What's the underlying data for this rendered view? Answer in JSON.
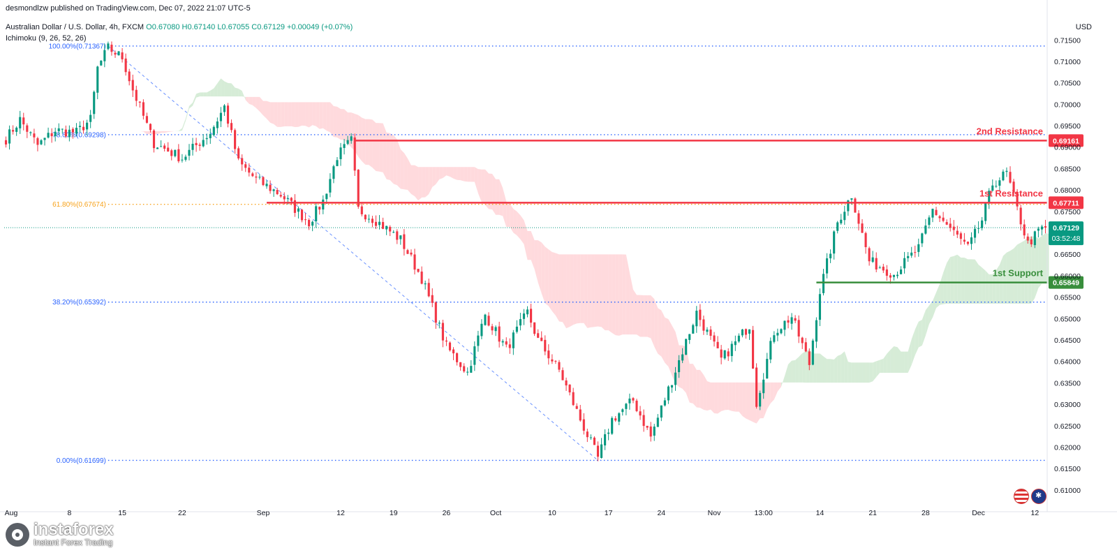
{
  "header": {
    "publisher": "desmondlzw published on TradingView.com, Dec 07, 2022 21:07 UTC-5",
    "symbol": "Australian Dollar / U.S. Dollar, 4h, FXCM",
    "ohlc": {
      "o": "O0.67080",
      "h": "H0.67140",
      "l": "L0.67055",
      "c": "C0.67129",
      "chg": "+0.00049 (+0.07%)"
    },
    "indicator": "Ichimoku (9, 26, 52, 26)",
    "currency": "USD"
  },
  "branding": {
    "name": "instaforex",
    "tagline": "Instant Forex Trading"
  },
  "chart_data": {
    "type": "candlestick",
    "instrument": "AUDUSD 4h",
    "ylim": [
      0.6055,
      0.7205
    ],
    "y_ticks": [
      "0.71500",
      "0.71000",
      "0.70500",
      "0.70000",
      "0.69500",
      "0.69000",
      "0.68500",
      "0.68000",
      "0.67500",
      "0.67000",
      "0.66500",
      "0.66000",
      "0.65500",
      "0.65000",
      "0.64500",
      "0.64000",
      "0.63500",
      "0.63000",
      "0.62500",
      "0.62000",
      "0.61500",
      "0.61000"
    ],
    "x_ticks": [
      {
        "label": "Aug",
        "idx": 0
      },
      {
        "label": "8",
        "idx": 18
      },
      {
        "label": "15",
        "idx": 33
      },
      {
        "label": "22",
        "idx": 50
      },
      {
        "label": "Sep",
        "idx": 73
      },
      {
        "label": "12",
        "idx": 95
      },
      {
        "label": "19",
        "idx": 110
      },
      {
        "label": "26",
        "idx": 125
      },
      {
        "label": "Oct",
        "idx": 139
      },
      {
        "label": "10",
        "idx": 155
      },
      {
        "label": "17",
        "idx": 171
      },
      {
        "label": "24",
        "idx": 186
      },
      {
        "label": "Nov",
        "idx": 201
      },
      {
        "label": "13:00",
        "idx": 215
      },
      {
        "label": "14",
        "idx": 231
      },
      {
        "label": "21",
        "idx": 246
      },
      {
        "label": "28",
        "idx": 261
      },
      {
        "label": "Dec",
        "idx": 276
      },
      {
        "label": "12",
        "idx": 292
      }
    ],
    "price_path": [
      [
        0,
        0.692
      ],
      [
        4,
        0.6965
      ],
      [
        9,
        0.6905
      ],
      [
        14,
        0.694
      ],
      [
        20,
        0.6935
      ],
      [
        24,
        0.6965
      ],
      [
        26,
        0.7085
      ],
      [
        29,
        0.7132
      ],
      [
        33,
        0.711
      ],
      [
        36,
        0.7035
      ],
      [
        42,
        0.691
      ],
      [
        50,
        0.6875
      ],
      [
        58,
        0.6935
      ],
      [
        62,
        0.6995
      ],
      [
        66,
        0.6865
      ],
      [
        71,
        0.6825
      ],
      [
        78,
        0.679
      ],
      [
        86,
        0.6725
      ],
      [
        90,
        0.6775
      ],
      [
        94,
        0.688
      ],
      [
        98,
        0.6916
      ],
      [
        100,
        0.6755
      ],
      [
        105,
        0.673
      ],
      [
        112,
        0.6685
      ],
      [
        118,
        0.6595
      ],
      [
        125,
        0.6435
      ],
      [
        131,
        0.6375
      ],
      [
        136,
        0.651
      ],
      [
        142,
        0.643
      ],
      [
        148,
        0.6515
      ],
      [
        151,
        0.645
      ],
      [
        157,
        0.638
      ],
      [
        163,
        0.6265
      ],
      [
        168,
        0.6175
      ],
      [
        172,
        0.6265
      ],
      [
        178,
        0.631
      ],
      [
        183,
        0.6225
      ],
      [
        190,
        0.638
      ],
      [
        196,
        0.6515
      ],
      [
        203,
        0.6405
      ],
      [
        211,
        0.6485
      ],
      [
        213,
        0.6305
      ],
      [
        218,
        0.647
      ],
      [
        223,
        0.6505
      ],
      [
        228,
        0.6395
      ],
      [
        231,
        0.6565
      ],
      [
        236,
        0.6725
      ],
      [
        240,
        0.679
      ],
      [
        245,
        0.6635
      ],
      [
        252,
        0.6605
      ],
      [
        259,
        0.6665
      ],
      [
        263,
        0.6755
      ],
      [
        267,
        0.672
      ],
      [
        273,
        0.6665
      ],
      [
        277,
        0.673
      ],
      [
        280,
        0.6815
      ],
      [
        284,
        0.684
      ],
      [
        287,
        0.6755
      ],
      [
        290,
        0.6675
      ],
      [
        294,
        0.6712
      ]
    ],
    "last_price": "0.67129",
    "countdown": "03:52:48",
    "fibonacci": [
      {
        "level": "100.00%",
        "price": 0.71367,
        "label": "100.00%(0.71367)"
      },
      {
        "level": "78.60%",
        "price": 0.69298,
        "label": "78.60%(0.69298)"
      },
      {
        "level": "61.80%",
        "price": 0.67674,
        "label": "61.80%(0.67674)"
      },
      {
        "level": "38.20%",
        "price": 0.65392,
        "label": "38.20%(0.65392)"
      },
      {
        "level": "0.00%",
        "price": 0.61699,
        "label": "0.00%(0.61699)"
      }
    ],
    "levels": [
      {
        "name": "2nd Resistance",
        "price": 0.69161,
        "label": "0.69161",
        "color": "#f23645",
        "start_idx": 99
      },
      {
        "name": "1st Resistance",
        "price": 0.67711,
        "label": "0.67711",
        "color": "#f23645",
        "start_idx": 74
      },
      {
        "name": "1st Support",
        "price": 0.65849,
        "label": "0.65849",
        "color": "#388e3c",
        "start_idx": 230
      }
    ],
    "colors": {
      "up": "#089981",
      "down": "#f23645",
      "fib_blue": "#2962ff",
      "fib_orange": "#f7a21b",
      "kumo_bull": "#c8e6c9",
      "kumo_bear": "#ffcdd2",
      "last_price": "#089981"
    }
  }
}
